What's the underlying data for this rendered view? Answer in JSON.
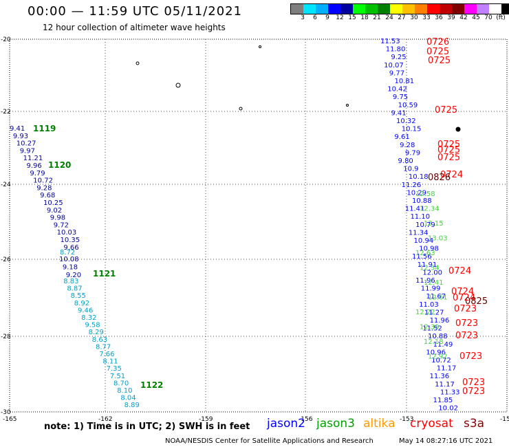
{
  "header": {
    "title": "00:00 — 11:59 UTC 05/11/2021",
    "subtitle": "12 hour collection of altimeter wave heights"
  },
  "legend": {
    "colors": [
      "#7f7f7f",
      "#00e5ff",
      "#00b0ff",
      "#0000ff",
      "#0000a0",
      "#00ff00",
      "#00c000",
      "#008000",
      "#ffff00",
      "#ffc000",
      "#ff8000",
      "#ff0000",
      "#c00000",
      "#800000",
      "#ff00ff",
      "#c080ff",
      "#ffffff",
      "#000000"
    ],
    "labels": [
      "3",
      "6",
      "9",
      "12",
      "15",
      "18",
      "21",
      "24",
      "27",
      "30",
      "33",
      "36",
      "39",
      "42",
      "45",
      "70",
      "(ft)"
    ]
  },
  "map": {
    "x_ticks": [
      "-165",
      "-162",
      "-159",
      "-156",
      "-153",
      "-15"
    ],
    "y_ticks": [
      "-20",
      "-22",
      "-24",
      "-26",
      "-28",
      "-30"
    ]
  },
  "tracks": {
    "west": {
      "blue_values": [
        "9.41",
        "9.93",
        "10.27",
        "9.97",
        "11.21",
        "9.96",
        "9.79",
        "10.72",
        "9.28",
        "9.68",
        "10.25",
        "9.02",
        "9.98",
        "9.72",
        "10.03",
        "10.35",
        "9.66"
      ],
      "blue_values_lower": [
        "10.08",
        "9.18",
        "9.20"
      ],
      "cyan_values": [
        "8.72",
        "8.83",
        "8.87",
        "8.55",
        "8.92",
        "9.46",
        "8.32",
        "9.58",
        "8.29",
        "8.63",
        "8.77",
        "7.66",
        "8.11",
        "7.35",
        "7.51",
        "8.70",
        "8.10",
        "8.04",
        "8.89"
      ],
      "times": [
        "1119",
        "1120",
        "1121",
        "1122"
      ]
    },
    "east": {
      "blue_values": [
        "11.53",
        "11.80",
        "9.25",
        "10.07",
        "9.77",
        "10.81",
        "10.42",
        "9.75",
        "10.59",
        "9.41",
        "10.32",
        "10.15",
        "9.61",
        "9.28",
        "9.79",
        "9.80",
        "10.9",
        "10.18",
        "11.26",
        "10.29",
        "10.88",
        "11.41",
        "11.10",
        "10.79",
        "11.34",
        "10.94",
        "10.98",
        "11.56",
        "11.91",
        "12.00",
        "11.96",
        "11.99",
        "11.67",
        "11.03",
        "11.27",
        "11.96",
        "11.52",
        "10.88",
        "11.49",
        "10.96",
        "10.72",
        "11.17",
        "11.36",
        "11.17",
        "11.33",
        "11.85",
        "10.02"
      ],
      "green_values": [
        "12.58",
        "12.34",
        "12.15",
        "13.03",
        "12.63",
        "12.54",
        "12.41",
        "12.61",
        "12.22",
        "12.39",
        "12.18",
        "12.92"
      ],
      "times_red": [
        "0726",
        "0725",
        "0725",
        "0725",
        "0725",
        "0725",
        "0725",
        "0724",
        "0724",
        "0724",
        "0724",
        "0723",
        "0723",
        "0723",
        "0723",
        "0723",
        "0723"
      ],
      "times_dark": [
        "0826",
        "0825"
      ]
    }
  },
  "footer": {
    "note": "note:  1) Time is in UTC;  2) SWH is in feet",
    "missions": [
      {
        "name": "jason2",
        "color": "#0000ff"
      },
      {
        "name": "jason3",
        "color": "#00a000"
      },
      {
        "name": "altika",
        "color": "#ff9900"
      },
      {
        "name": "cryosat",
        "color": "#ff0000"
      },
      {
        "name": "s3a",
        "color": "#8b0000"
      }
    ],
    "credit": "NOAA/NESDIS Center for Satellite Applications and Research",
    "stamp": "May 14 08:27:16 UTC 2021"
  }
}
